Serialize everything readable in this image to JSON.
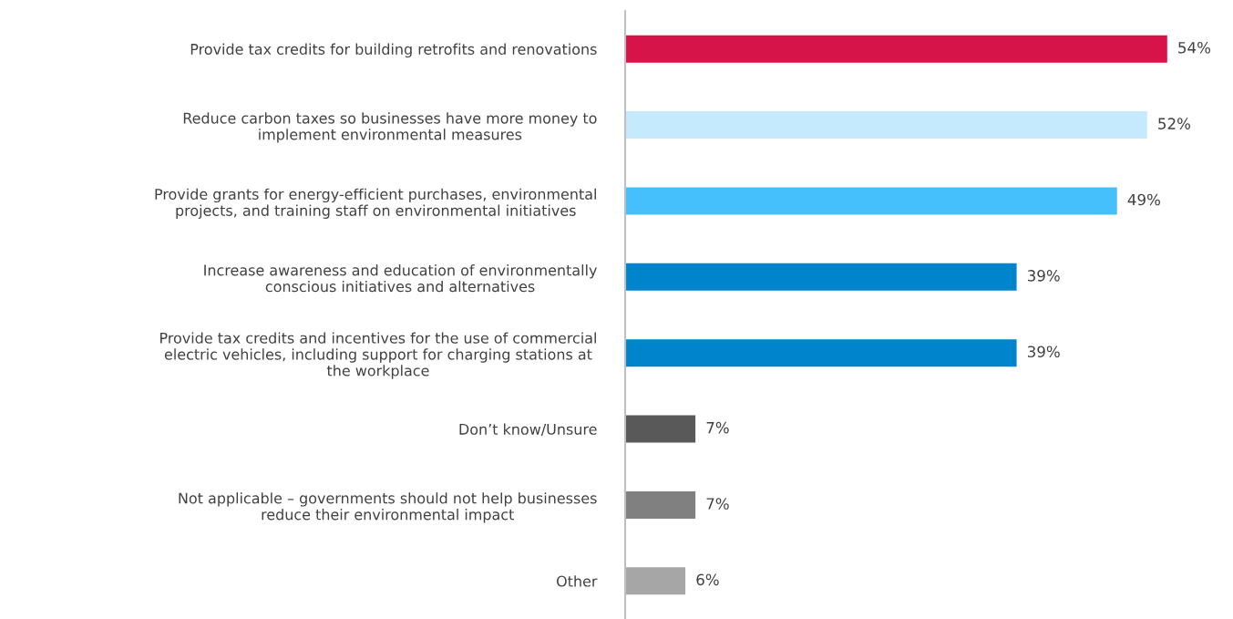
{
  "chart_data": {
    "type": "bar",
    "orientation": "horizontal",
    "tick_labels": "y",
    "grid": false,
    "legend": false,
    "categories": [
      "Provide tax credits for building retrofits and renovations",
      "Reduce carbon taxes so businesses have more money to\nimplement environmental measures",
      "Provide grants for energy-efficient purchases, environmental\nprojects, and training staff on environmental initiatives",
      "Increase awareness and education of environmentally\nconscious initiatives and alternatives",
      "Provide tax credits and incentives for the use of commercial\nelectric vehicles, including support for charging stations at\nthe workplace",
      "Don’t know/Unsure",
      "Not applicable – governments should not help businesses\nreduce their environmental impact",
      "Other"
    ],
    "values": [
      54,
      52,
      49,
      39,
      39,
      7,
      7,
      6
    ],
    "colors": [
      "#d7144a",
      "#c5e9fd",
      "#45c0fc",
      "#0085cc",
      "#0085cc",
      "#595959",
      "#808080",
      "#a6a6a6"
    ],
    "value_labels": [
      "54%",
      "52%",
      "49%",
      "39%",
      "39%",
      "7%",
      "7%",
      "6%"
    ]
  }
}
